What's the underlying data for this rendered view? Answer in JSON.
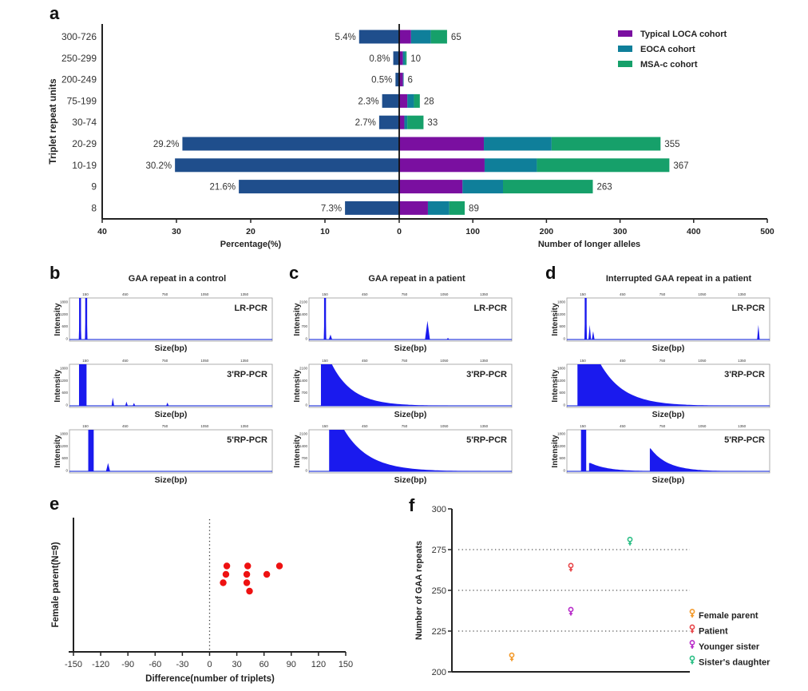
{
  "panels": {
    "a": "a",
    "b": "b",
    "c": "c",
    "d": "d",
    "e": "e",
    "f": "f"
  },
  "chart_data": [
    {
      "id": "a",
      "type": "bar",
      "subtype": "back-to-back horizontal stacked bar",
      "ylabel": "Triplet repeat units",
      "categories": [
        "300-726",
        "250-299",
        "200-249",
        "75-199",
        "30-74",
        "20-29",
        "10-19",
        "9",
        "8"
      ],
      "left": {
        "xlabel": "Percentage(%)",
        "xlim": [
          40,
          0
        ],
        "ticks": [
          "40",
          "30",
          "20",
          "10",
          "0"
        ],
        "color": "#1f4e8c",
        "values": [
          5.4,
          0.8,
          0.5,
          2.3,
          2.7,
          29.2,
          30.2,
          21.6,
          7.3
        ],
        "labels": [
          "5.4%",
          "0.8%",
          "0.5%",
          "2.3%",
          "2.7%",
          "29.2%",
          "30.2%",
          "21.6%",
          "7.3%"
        ]
      },
      "right": {
        "xlabel": "Number of longer alleles",
        "xlim": [
          0,
          500
        ],
        "ticks": [
          "100",
          "200",
          "300",
          "400",
          "500"
        ],
        "totals": [
          65,
          10,
          6,
          28,
          33,
          355,
          367,
          263,
          89
        ],
        "series": [
          {
            "name": "Typical LOCA cohort",
            "color": "#7a0fa0",
            "values": [
              16,
              5,
              5,
              11,
              7,
              115,
              116,
              86,
              39
            ]
          },
          {
            "name": "EOCA cohort",
            "color": "#0f7f9a",
            "values": [
              27,
              3,
              1,
              9,
              4,
              92,
              71,
              55,
              29
            ]
          },
          {
            "name": "MSA-c cohort",
            "color": "#16a06a",
            "values": [
              22,
              2,
              0,
              8,
              22,
              148,
              180,
              122,
              21
            ]
          }
        ]
      },
      "legend_position": "top-right"
    },
    {
      "id": "b",
      "type": "area",
      "title": "GAA repeat in a control",
      "traces": [
        {
          "label": "LR-PCR",
          "xlabel": "Size(bp)",
          "ylabel": "Intensity",
          "xticks": [
            "150",
            "450",
            "750",
            "1050",
            "1350"
          ],
          "yticks": [
            "0",
            "600",
            "1200",
            "1800"
          ],
          "ymax": 1900,
          "peaks": [
            {
              "x": 60,
              "h": 1.0,
              "w": 6,
              "kind": "spike"
            },
            {
              "x": 105,
              "h": 1.0,
              "w": 6,
              "kind": "spike"
            }
          ]
        },
        {
          "label": "3'RP-PCR",
          "xlabel": "Size(bp)",
          "ylabel": "Intensity",
          "xticks": [
            "150",
            "450",
            "750",
            "1050",
            "1350"
          ],
          "yticks": [
            "0",
            "600",
            "1200",
            "1800"
          ],
          "ymax": 1900,
          "peaks": [
            {
              "x": 80,
              "h": 1.0,
              "w": 55,
              "kind": "block"
            },
            {
              "x": 300,
              "h": 0.2,
              "w": 5,
              "kind": "spike"
            },
            {
              "x": 400,
              "h": 0.1,
              "w": 5,
              "kind": "spike"
            },
            {
              "x": 455,
              "h": 0.07,
              "w": 4,
              "kind": "spike"
            },
            {
              "x": 700,
              "h": 0.08,
              "w": 8,
              "kind": "spike"
            }
          ]
        },
        {
          "label": "5'RP-PCR",
          "xlabel": "Size(bp)",
          "ylabel": "Intensity",
          "xticks": [
            "150",
            "450",
            "750",
            "1050",
            "1350"
          ],
          "yticks": [
            "0",
            "600",
            "1200",
            "1800"
          ],
          "ymax": 1900,
          "peaks": [
            {
              "x": 140,
              "h": 1.0,
              "w": 40,
              "kind": "block"
            },
            {
              "x": 265,
              "h": 0.2,
              "w": 15,
              "kind": "spike"
            }
          ]
        }
      ]
    },
    {
      "id": "c",
      "type": "area",
      "title": "GAA repeat in a patient",
      "traces": [
        {
          "label": "LR-PCR",
          "xlabel": "Size(bp)",
          "ylabel": "Intensity",
          "xticks": [
            "150",
            "450",
            "750",
            "1050",
            "1350"
          ],
          "yticks": [
            "0",
            "700",
            "1400",
            "2100"
          ],
          "ymax": 2200,
          "peaks": [
            {
              "x": 100,
              "h": 1.0,
              "w": 5,
              "kind": "spike"
            },
            {
              "x": 140,
              "h": 0.12,
              "w": 12,
              "kind": "spike"
            },
            {
              "x": 850,
              "h": 0.45,
              "w": 18,
              "kind": "spike"
            },
            {
              "x": 1000,
              "h": 0.04,
              "w": 6,
              "kind": "spike"
            }
          ]
        },
        {
          "label": "3'RP-PCR",
          "xlabel": "Size(bp)",
          "ylabel": "Intensity",
          "xticks": [
            "150",
            "450",
            "750",
            "1050",
            "1350"
          ],
          "yticks": [
            "0",
            "700",
            "1400",
            "2100"
          ],
          "ymax": 2200,
          "peaks": [
            {
              "x": 70,
              "h": 1.0,
              "w": 0,
              "kind": "decay",
              "plateau": 80,
              "decay": 170
            }
          ]
        },
        {
          "label": "5'RP-PCR",
          "xlabel": "Size(bp)",
          "ylabel": "Intensity",
          "xticks": [
            "150",
            "450",
            "750",
            "1050",
            "1350"
          ],
          "yticks": [
            "0",
            "700",
            "1400",
            "2100"
          ],
          "ymax": 2200,
          "peaks": [
            {
              "x": 130,
              "h": 1.0,
              "w": 0,
              "kind": "decay",
              "plateau": 110,
              "decay": 200
            }
          ]
        }
      ]
    },
    {
      "id": "d",
      "type": "area",
      "title": "Interrupted GAA repeat in a patient",
      "traces": [
        {
          "label": "LR-PCR",
          "xlabel": "Size(bp)",
          "ylabel": "Intensity",
          "xticks": [
            "150",
            "450",
            "750",
            "1050",
            "1350"
          ],
          "yticks": [
            "0",
            "600",
            "1200",
            "1800"
          ],
          "ymax": 1900,
          "peaks": [
            {
              "x": 120,
              "h": 1.0,
              "w": 5,
              "kind": "spike"
            },
            {
              "x": 150,
              "h": 0.35,
              "w": 5,
              "kind": "spike"
            },
            {
              "x": 175,
              "h": 0.2,
              "w": 10,
              "kind": "spike"
            },
            {
              "x": 1385,
              "h": 0.35,
              "w": 5,
              "kind": "spike"
            }
          ]
        },
        {
          "label": "3'RP-PCR",
          "xlabel": "Size(bp)",
          "ylabel": "Intensity",
          "xticks": [
            "150",
            "450",
            "750",
            "1050",
            "1350"
          ],
          "yticks": [
            "0",
            "600",
            "1200",
            "1800"
          ],
          "ymax": 1900,
          "peaks": [
            {
              "x": 60,
              "h": 1.0,
              "w": 0,
              "kind": "decay",
              "plateau": 170,
              "decay": 190
            }
          ]
        },
        {
          "label": "5'RP-PCR",
          "xlabel": "Size(bp)",
          "ylabel": "Intensity",
          "xticks": [
            "150",
            "450",
            "750",
            "1050",
            "1350"
          ],
          "yticks": [
            "0",
            "600",
            "1200",
            "1800"
          ],
          "ymax": 1900,
          "peaks": [
            {
              "x": 105,
              "h": 1.0,
              "w": 38,
              "kind": "block"
            },
            {
              "x": 145,
              "h": 0.2,
              "w": 0,
              "kind": "decay",
              "plateau": 10,
              "decay": 140
            },
            {
              "x": 590,
              "h": 0.55,
              "w": 0,
              "kind": "decay",
              "plateau": 5,
              "decay": 140
            }
          ]
        }
      ]
    },
    {
      "id": "e",
      "type": "scatter",
      "xlabel": "Difference(number of triplets)",
      "ylabel": "Female parent(N=9)",
      "xlim": [
        -150,
        150
      ],
      "xticks": [
        "-150",
        "-120",
        "-90",
        "-60",
        "-30",
        "0",
        "30",
        "60",
        "90",
        "120",
        "150"
      ],
      "reference_line_x": 0,
      "color": "#ee1111",
      "points": [
        {
          "x": 19,
          "row": 3
        },
        {
          "x": 42,
          "row": 3
        },
        {
          "x": 77,
          "row": 3
        },
        {
          "x": 18,
          "row": 2
        },
        {
          "x": 41,
          "row": 2
        },
        {
          "x": 63,
          "row": 2
        },
        {
          "x": 15,
          "row": 1
        },
        {
          "x": 41,
          "row": 1
        },
        {
          "x": 44,
          "row": 0
        }
      ]
    },
    {
      "id": "f",
      "type": "scatter",
      "ylabel": "Number of GAA repeats",
      "ylim": [
        200,
        300
      ],
      "yticks": [
        "200",
        "225",
        "250",
        "275",
        "300"
      ],
      "gridlines": [
        225,
        250,
        275
      ],
      "legend_position": "right",
      "points": [
        {
          "name": "Female parent",
          "color": "#f39a2c",
          "group": 1,
          "y": 209
        },
        {
          "name": "Patient",
          "color": "#e8474a",
          "group": 2,
          "y": 264
        },
        {
          "name": "Younger sister",
          "color": "#b82cc9",
          "group": 2,
          "y": 237
        },
        {
          "name": "Sister's daughter",
          "color": "#2cbf86",
          "group": 3,
          "y": 280
        }
      ]
    }
  ]
}
